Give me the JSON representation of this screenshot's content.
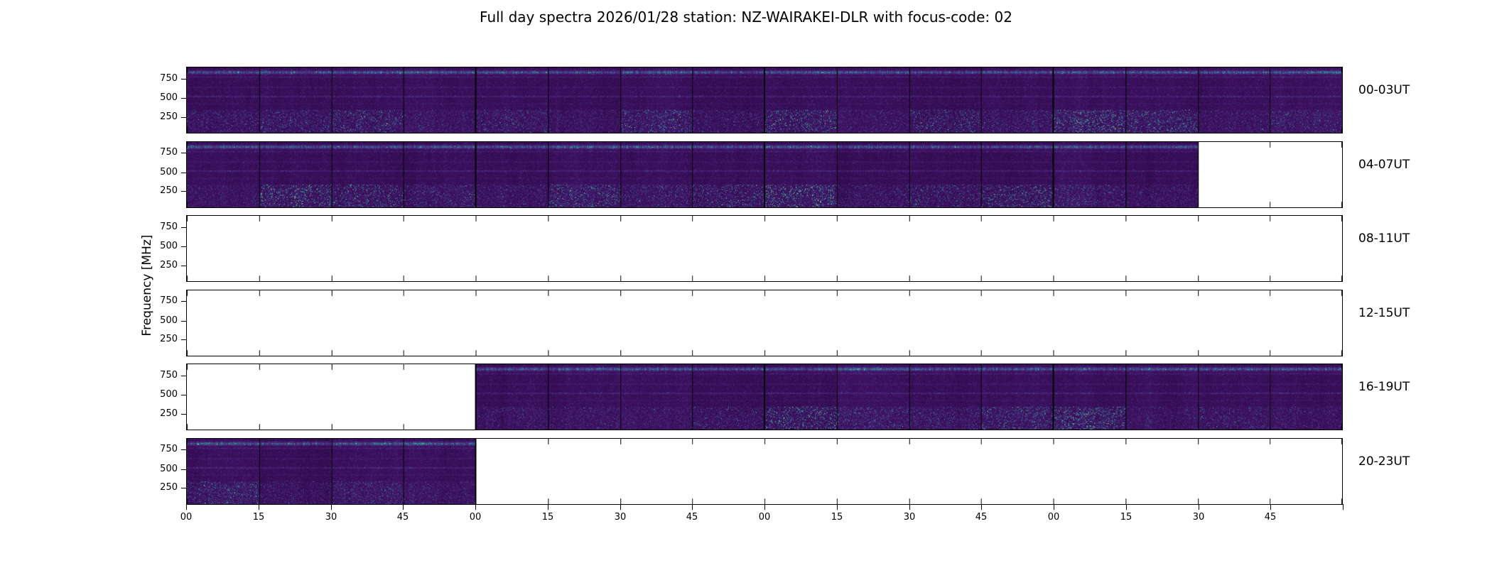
{
  "chart_data": {
    "type": "heatmap",
    "title": "Full day spectra 2026/01/28 station: NZ-WAIRAKEI-DLR with focus-code: 02",
    "date": "2026/01/28",
    "station": "NZ-WAIRAKEI-DLR",
    "focus_code": "02",
    "ylabel": "Frequency [MHz]",
    "y_ticks": [
      250,
      500,
      750
    ],
    "x_tick_labels": [
      "00",
      "15",
      "30",
      "45",
      "00",
      "15",
      "30",
      "45",
      "00",
      "15",
      "30",
      "45",
      "00",
      "15",
      "30",
      "45"
    ],
    "segments_per_row": 16,
    "segment_minutes": 15,
    "hours_per_row": 4,
    "colormap": "viridis",
    "legend": "none",
    "grid": false,
    "colors": {
      "figure_background": "#ffffff",
      "spectrogram_base": "#330a4e",
      "spectrogram_accent": "#35b7a0",
      "axis": "#000000"
    },
    "rows": [
      {
        "label": "00-03UT",
        "filled_segments": [
          1,
          1,
          1,
          1,
          1,
          1,
          1,
          1,
          1,
          1,
          1,
          1,
          1,
          1,
          1,
          1
        ]
      },
      {
        "label": "04-07UT",
        "filled_segments": [
          1,
          1,
          1,
          1,
          1,
          1,
          1,
          1,
          1,
          1,
          1,
          1,
          1,
          1,
          0,
          0
        ]
      },
      {
        "label": "08-11UT",
        "filled_segments": [
          0,
          0,
          0,
          0,
          0,
          0,
          0,
          0,
          0,
          0,
          0,
          0,
          0,
          0,
          0,
          0
        ]
      },
      {
        "label": "12-15UT",
        "filled_segments": [
          0,
          0,
          0,
          0,
          0,
          0,
          0,
          0,
          0,
          0,
          0,
          0,
          0,
          0,
          0,
          0
        ]
      },
      {
        "label": "16-19UT",
        "filled_segments": [
          0,
          0,
          0,
          0,
          1,
          1,
          1,
          1,
          1,
          1,
          1,
          1,
          1,
          1,
          1,
          1
        ]
      },
      {
        "label": "20-23UT",
        "filled_segments": [
          1,
          1,
          1,
          1,
          0,
          0,
          0,
          0,
          0,
          0,
          0,
          0,
          0,
          0,
          0,
          0
        ]
      }
    ]
  }
}
